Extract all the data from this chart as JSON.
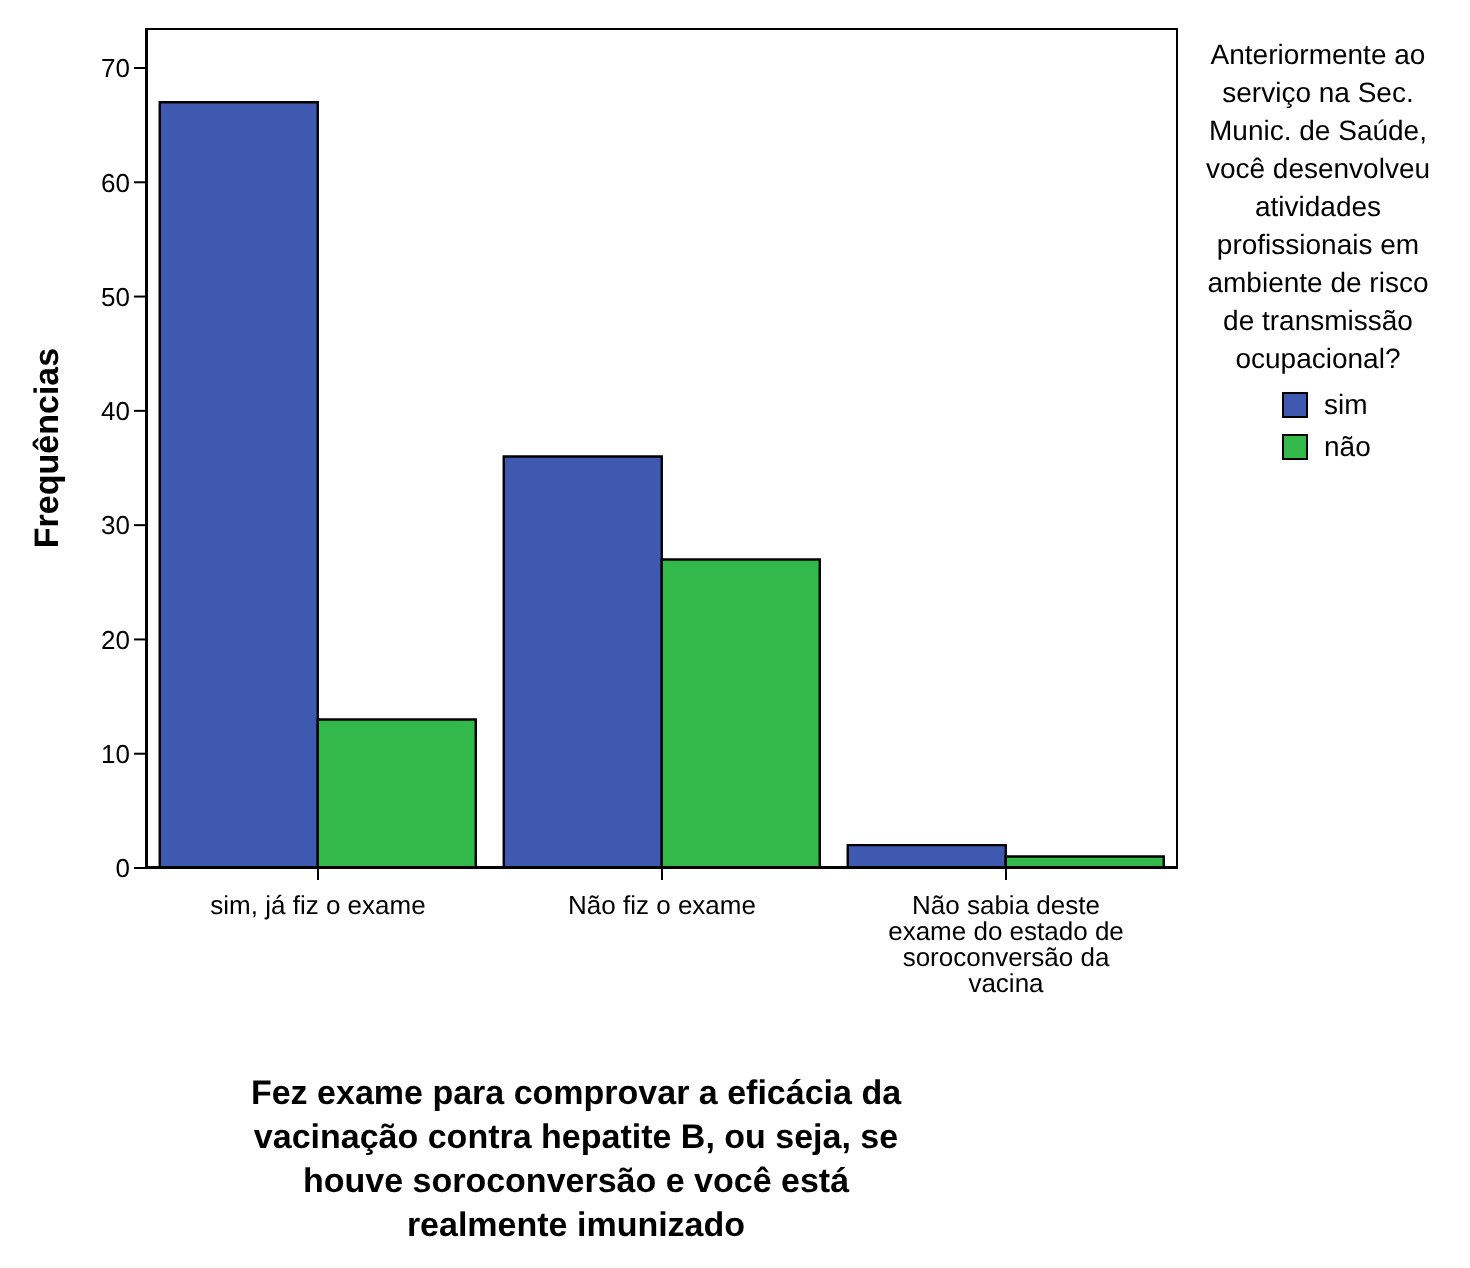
{
  "chart_data": {
    "type": "bar",
    "xlabel": "Fez exame para comprovar a eficácia da vacinação contra hepatite B, ou seja, se houve soroconversão e você está realmente imunizado",
    "ylabel": "Frequências",
    "legend_title": "Anteriormente ao serviço na Sec. Munic. de Saúde, você desenvolveu atividades profissionais em ambiente de risco de transmissão ocupacional?",
    "categories": [
      "sim, já fiz o exame",
      "Não fiz o exame",
      "Não sabia deste exame do estado de soroconversão da vacina"
    ],
    "series": [
      {
        "name": "sim",
        "color": "#3f58b0",
        "values": [
          67,
          36,
          2
        ]
      },
      {
        "name": "não",
        "color": "#33b94a",
        "values": [
          13,
          27,
          1
        ]
      }
    ],
    "ylim": [
      0,
      73.5
    ],
    "yticks": [
      0,
      10,
      20,
      30,
      40,
      50,
      60,
      70
    ],
    "grid": false,
    "legend": "right"
  }
}
